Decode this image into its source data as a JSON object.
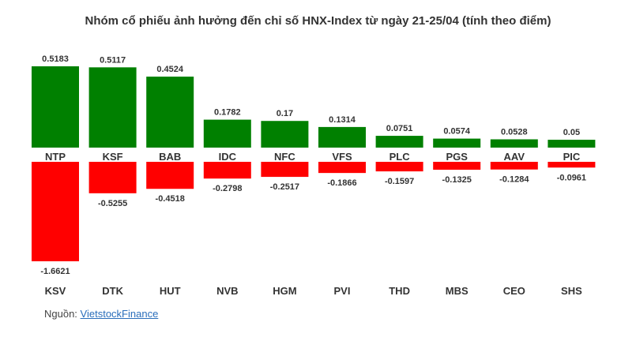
{
  "title": "Nhóm cổ phiếu ảnh hưởng đến chỉ số HNX-Index từ ngày 21-25/04 (tính theo điểm)",
  "source": {
    "prefix": "Nguồn: ",
    "link_text": "VietstockFinance"
  },
  "colors": {
    "positive": "#008000",
    "negative": "#ff0000",
    "text": "#333333"
  },
  "chart_data": {
    "type": "bar",
    "title": "Nhóm cổ phiếu ảnh hưởng đến chỉ số HNX-Index từ ngày 21-25/04 (tính theo điểm)",
    "series": [
      {
        "categories": [
          "NTP",
          "KSF",
          "BAB",
          "IDC",
          "NFC",
          "VFS",
          "PLC",
          "PGS",
          "AAV",
          "PIC"
        ],
        "values": [
          0.5183,
          0.5117,
          0.4524,
          0.1782,
          0.17,
          0.1314,
          0.0751,
          0.0574,
          0.0528,
          0.05
        ],
        "labels": [
          "0.5183",
          "0.5117",
          "0.4524",
          "0.1782",
          "0.17",
          "0.1314",
          "0.0751",
          "0.0574",
          "0.0528",
          "0.05"
        ],
        "color": "#008000"
      },
      {
        "categories": [
          "KSV",
          "DTK",
          "HUT",
          "NVB",
          "HGM",
          "PVI",
          "THD",
          "MBS",
          "CEO",
          "SHS"
        ],
        "values": [
          -1.6621,
          -0.5255,
          -0.4518,
          -0.2798,
          -0.2517,
          -0.1866,
          -0.1597,
          -0.1325,
          -0.1284,
          -0.0961
        ],
        "labels": [
          "-1.6621",
          "-0.5255",
          "-0.4518",
          "-0.2798",
          "-0.2517",
          "-0.1866",
          "-0.1597",
          "-0.1325",
          "-0.1284",
          "-0.0961"
        ],
        "color": "#ff0000"
      }
    ],
    "grid": false,
    "legend": "none"
  }
}
